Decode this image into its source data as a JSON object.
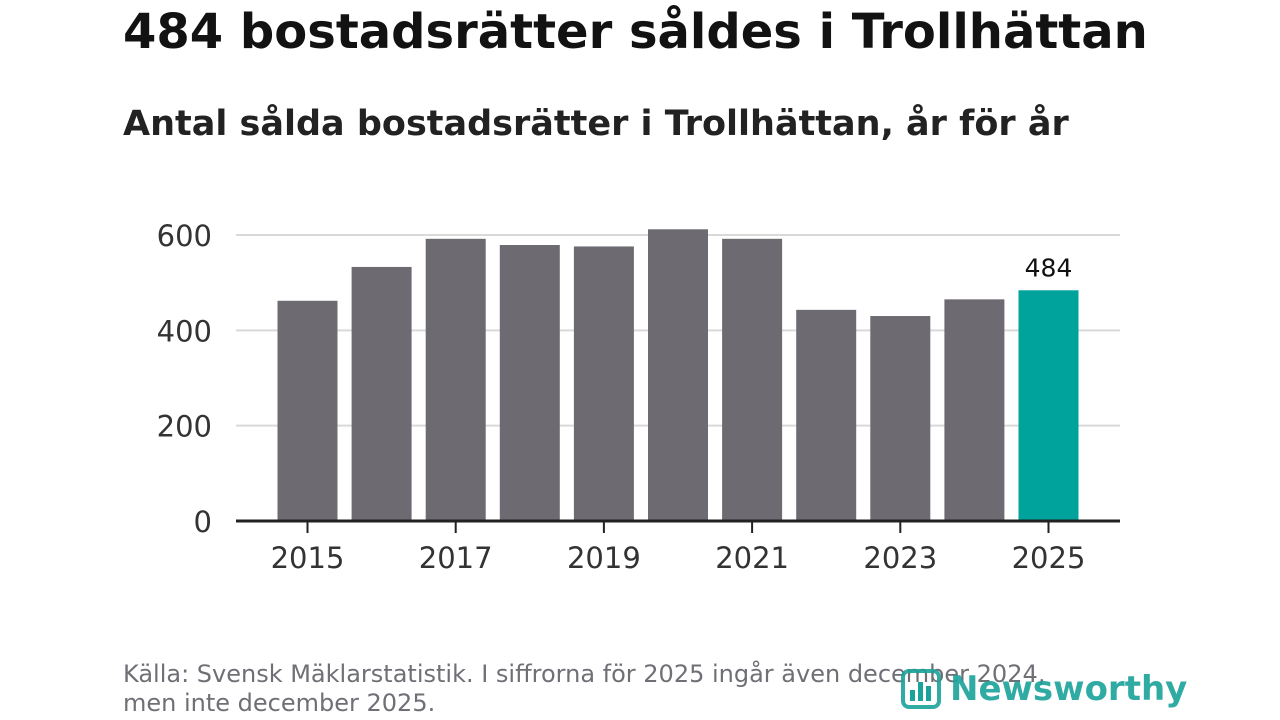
{
  "title": "484 bostadsrätter såldes i Trollhättan",
  "subtitle": "Antal sålda bostadsrätter i Trollhättan, år för år",
  "footnote_line1": "Källa: Svensk Mäklarstatistik. I siffrorna för 2025 ingår även december 2024,",
  "footnote_line2": "men inte december 2025.",
  "logo_text": "Newsworthy",
  "colors": {
    "bar": "#6d6b71",
    "highlight": "#00a39b",
    "grid": "#d9d9d9",
    "axis": "#222222"
  },
  "chart_data": {
    "type": "bar",
    "title": "484 bostadsrätter såldes i Trollhättan",
    "subtitle": "Antal sålda bostadsrätter i Trollhättan, år för år",
    "categories": [
      "2015",
      "2016",
      "2017",
      "2018",
      "2019",
      "2020",
      "2021",
      "2022",
      "2023",
      "2024",
      "2025"
    ],
    "values": [
      462,
      533,
      592,
      579,
      576,
      612,
      592,
      443,
      430,
      465,
      484
    ],
    "highlight_index": 10,
    "data_labels": [
      {
        "index": 10,
        "text": "484"
      }
    ],
    "yticks": [
      0,
      200,
      400,
      600
    ],
    "ytick_labels": [
      "0",
      "200",
      "400",
      "600"
    ],
    "xtick_labels": [
      "2015",
      "2017",
      "2019",
      "2021",
      "2023",
      "2025"
    ],
    "ylim": [
      0,
      620
    ],
    "grid": true,
    "xlabel": "",
    "ylabel": ""
  }
}
